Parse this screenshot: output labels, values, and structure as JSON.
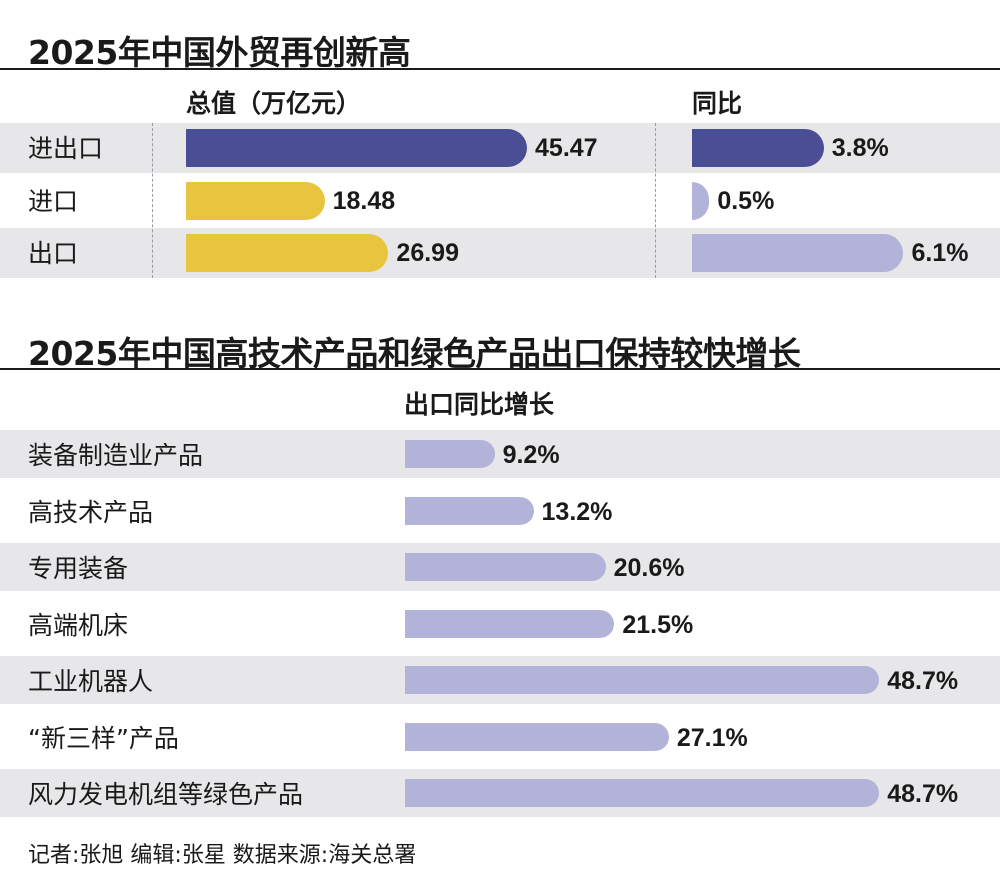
{
  "colors": {
    "navy": "#4a4e94",
    "gold": "#e9c43f",
    "lavender": "#b3b2d8",
    "band": "#e7e7e9"
  },
  "chart_data": [
    {
      "type": "bar",
      "title": "2025年中国外贸再创新高",
      "panels": [
        {
          "header": "总值（万亿元）",
          "categories": [
            "进出口",
            "进口",
            "出口"
          ],
          "values": [
            45.47,
            18.48,
            26.99
          ],
          "value_labels": [
            "45.47",
            "18.48",
            "26.99"
          ],
          "colors": [
            "navy",
            "gold",
            "gold"
          ],
          "xlim": [
            0,
            60
          ]
        },
        {
          "header": "同比",
          "categories": [
            "进出口",
            "进口",
            "出口"
          ],
          "values": [
            3.8,
            0.5,
            6.1
          ],
          "value_labels": [
            "3.8%",
            "0.5%",
            "6.1%"
          ],
          "colors": [
            "navy",
            "lavender",
            "lavender"
          ],
          "xlim": [
            0,
            7.5
          ]
        }
      ]
    },
    {
      "type": "bar",
      "title": "2025年中国高技术产品和绿色产品出口保持较快增长",
      "header": "出口同比增长",
      "categories": [
        "装备制造业产品",
        "高技术产品",
        "专用装备",
        "高端机床",
        "工业机器人",
        "“新三样”产品",
        "风力发电机组等绿色产品"
      ],
      "values": [
        9.2,
        13.2,
        20.6,
        21.5,
        48.7,
        27.1,
        48.7
      ],
      "value_labels": [
        "9.2%",
        "13.2%",
        "20.6%",
        "21.5%",
        "48.7%",
        "27.1%",
        "48.7%"
      ],
      "colors": [
        "lavender",
        "lavender",
        "lavender",
        "lavender",
        "lavender",
        "lavender",
        "lavender"
      ],
      "xlim": [
        0,
        51.35
      ]
    }
  ],
  "footer": "记者:张旭   编辑:张星   数据来源:海关总署"
}
